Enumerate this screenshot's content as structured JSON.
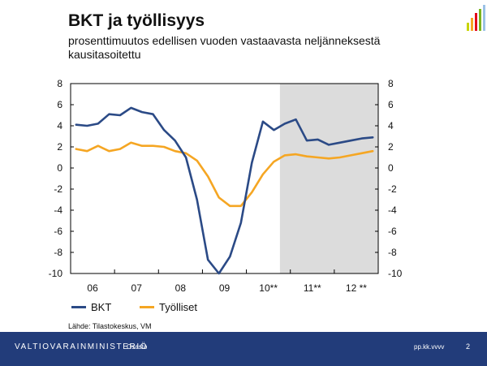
{
  "slide": {
    "title": "BKT ja työllisyys",
    "subtitle": "prosenttimuutos edellisen vuoden vastaavasta neljänneksestä kausitasoitettu",
    "source": "Lähde: Tilastokeskus, VM"
  },
  "footer": {
    "ministry": "VALTIOVARAINMINISTERIÖ",
    "unit": "Osasto",
    "date": "pp.kk.vvvv",
    "page": "2"
  },
  "colors": {
    "bkt": "#2b4a86",
    "tyolliset": "#f5a623",
    "forecast_shade": "#dcdcdc",
    "footer_bg": "#223c7a"
  },
  "chart_data": {
    "type": "line",
    "title": "BKT ja työllisyys",
    "xlabel": "",
    "ylabel": "",
    "ylim": [
      -10,
      8
    ],
    "yticks": [
      -10,
      -8,
      -6,
      -4,
      -2,
      0,
      2,
      4,
      6,
      8
    ],
    "ytick_labels": [
      "-10",
      "-8",
      "-6",
      "-4",
      "-2",
      "0",
      "2",
      "4",
      "6",
      "8"
    ],
    "x": [
      "2006Q1",
      "2006Q2",
      "2006Q3",
      "2006Q4",
      "2007Q1",
      "2007Q2",
      "2007Q3",
      "2007Q4",
      "2008Q1",
      "2008Q2",
      "2008Q3",
      "2008Q4",
      "2009Q1",
      "2009Q2",
      "2009Q3",
      "2009Q4",
      "2010Q1",
      "2010Q2",
      "2010Q3",
      "2010Q4",
      "2011Q1",
      "2011Q2",
      "2011Q3",
      "2011Q4",
      "2012Q1",
      "2012Q2",
      "2012Q3",
      "2012Q4"
    ],
    "x_tick_labels": [
      "06",
      "07",
      "08",
      "09",
      "10**",
      "11**",
      "12 **"
    ],
    "forecast_start": "2010Q4",
    "grid": false,
    "legend_position": "bottom-left",
    "series": [
      {
        "name": "BKT",
        "values": [
          4.1,
          4.0,
          4.2,
          5.1,
          5.0,
          5.7,
          5.3,
          5.1,
          3.6,
          2.6,
          1.0,
          -3.0,
          -8.7,
          -10.0,
          -8.4,
          -5.2,
          0.5,
          4.4,
          3.6,
          4.2,
          4.6,
          2.6,
          2.7,
          2.2,
          2.4,
          2.6,
          2.8,
          2.9
        ]
      },
      {
        "name": "Työlliset",
        "values": [
          1.8,
          1.6,
          2.1,
          1.6,
          1.8,
          2.4,
          2.1,
          2.1,
          2.0,
          1.6,
          1.4,
          0.7,
          -0.8,
          -2.8,
          -3.6,
          -3.6,
          -2.3,
          -0.6,
          0.6,
          1.2,
          1.3,
          1.1,
          1.0,
          0.9,
          1.0,
          1.2,
          1.4,
          1.6
        ]
      }
    ]
  }
}
